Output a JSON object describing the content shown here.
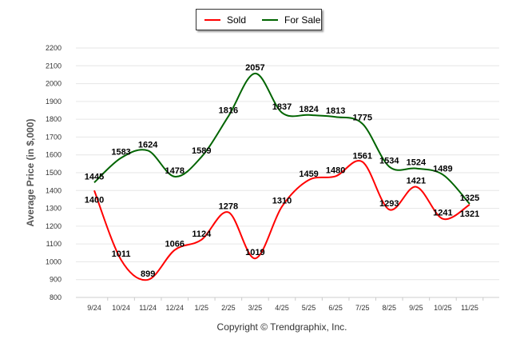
{
  "chart_data": {
    "type": "line",
    "ylabel": "Average Price (in $,000)",
    "xlabel": "",
    "footer": "Copyright © Trendgraphix, Inc.",
    "ylim": [
      800,
      2200
    ],
    "yticks": [
      800,
      900,
      1000,
      1100,
      1200,
      1300,
      1400,
      1500,
      1600,
      1700,
      1800,
      1900,
      2000,
      2100,
      2200
    ],
    "categories": [
      "9/24",
      "10/24",
      "11/24",
      "12/24",
      "1/25",
      "2/25",
      "3/25",
      "4/25",
      "5/25",
      "6/25",
      "7/25",
      "8/25",
      "9/25",
      "10/25",
      "11/25"
    ],
    "legend_position": "top-center",
    "series": [
      {
        "name": "Sold",
        "color": "#ff0000",
        "values": [
          1400,
          1011,
          899,
          1066,
          1124,
          1278,
          1019,
          1310,
          1459,
          1480,
          1561,
          1293,
          1421,
          1241,
          1321
        ]
      },
      {
        "name": "For Sale",
        "color": "#006400",
        "values": [
          1445,
          1583,
          1624,
          1478,
          1589,
          1816,
          2057,
          1837,
          1824,
          1813,
          1775,
          1534,
          1524,
          1489,
          1325
        ]
      }
    ]
  }
}
